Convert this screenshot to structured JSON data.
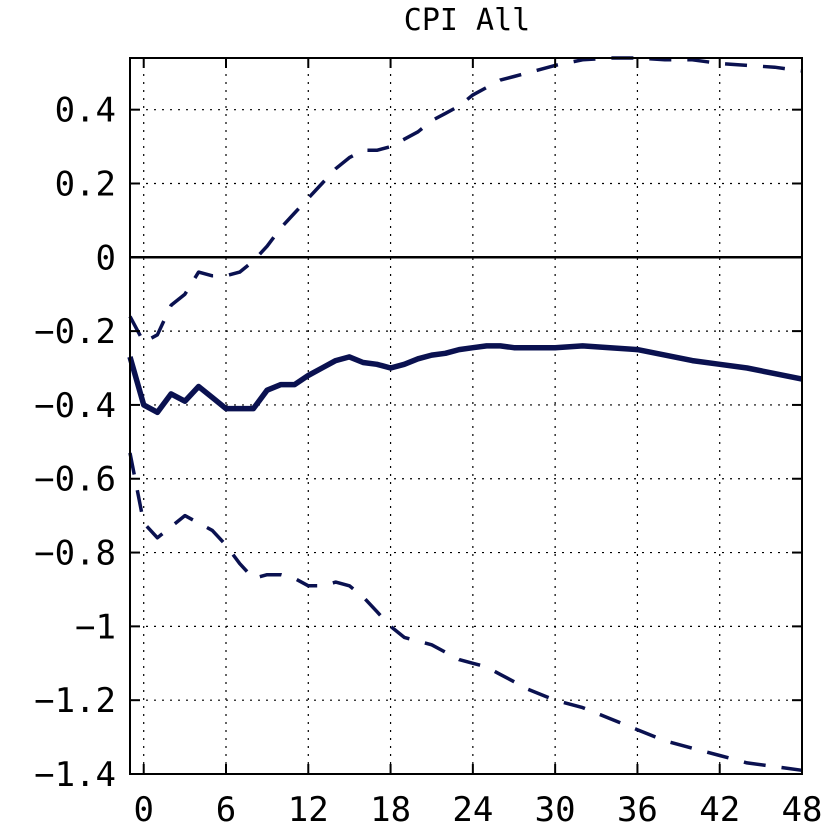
{
  "chart_data": {
    "type": "line",
    "title": "CPI All",
    "xlabel": "",
    "ylabel": "",
    "xlim": [
      -1,
      48
    ],
    "ylim": [
      -1.4,
      0.54
    ],
    "xticks": [
      0,
      6,
      12,
      18,
      24,
      30,
      36,
      42,
      48
    ],
    "xtick_labels": [
      "0",
      "6",
      "12",
      "18",
      "24",
      "30",
      "36",
      "42",
      "48"
    ],
    "yticks": [
      0.4,
      0.2,
      0,
      -0.2,
      -0.4,
      -0.6,
      -0.8,
      -1,
      -1.2,
      -1.4
    ],
    "ytick_labels": [
      "0.4",
      "0.2",
      "0",
      "−0.2",
      "−0.4",
      "−0.6",
      "−0.8",
      "−1",
      "−1.2",
      "−1.4"
    ],
    "grid": true,
    "zero_line": true,
    "line_color": "#0a1150",
    "series": [
      {
        "style": "solid",
        "x": [
          -1,
          0,
          1,
          2,
          3,
          4,
          5,
          6,
          7,
          8,
          9,
          10,
          11,
          12,
          13,
          14,
          15,
          16,
          17,
          18,
          19,
          20,
          21,
          22,
          23,
          24,
          25,
          26,
          27,
          28,
          29,
          30,
          32,
          34,
          36,
          38,
          40,
          42,
          44,
          46,
          48
        ],
        "values": [
          -0.27,
          -0.4,
          -0.42,
          -0.37,
          -0.39,
          -0.35,
          -0.38,
          -0.41,
          -0.41,
          -0.41,
          -0.36,
          -0.345,
          -0.345,
          -0.32,
          -0.3,
          -0.28,
          -0.27,
          -0.285,
          -0.29,
          -0.3,
          -0.29,
          -0.275,
          -0.265,
          -0.26,
          -0.25,
          -0.245,
          -0.24,
          -0.24,
          -0.245,
          -0.245,
          -0.245,
          -0.245,
          -0.24,
          -0.245,
          -0.25,
          -0.265,
          -0.28,
          -0.29,
          -0.3,
          -0.315,
          -0.33
        ]
      },
      {
        "style": "dashed",
        "x": [
          -1,
          0,
          1,
          2,
          3,
          4,
          5,
          6,
          7,
          8,
          9,
          10,
          11,
          12,
          13,
          14,
          15,
          16,
          17,
          18,
          19,
          20,
          21,
          22,
          23,
          24,
          25,
          26,
          27,
          28,
          30,
          32,
          34,
          36,
          38,
          40,
          42,
          44,
          46,
          48
        ],
        "values": [
          -0.16,
          -0.23,
          -0.21,
          -0.13,
          -0.1,
          -0.04,
          -0.05,
          -0.05,
          -0.04,
          -0.01,
          0.03,
          0.08,
          0.12,
          0.16,
          0.2,
          0.24,
          0.27,
          0.29,
          0.29,
          0.3,
          0.32,
          0.34,
          0.37,
          0.39,
          0.41,
          0.44,
          0.46,
          0.48,
          0.49,
          0.5,
          0.52,
          0.535,
          0.54,
          0.54,
          0.535,
          0.535,
          0.525,
          0.52,
          0.515,
          0.505
        ]
      },
      {
        "style": "dashed",
        "x": [
          -1,
          0,
          1,
          2,
          3,
          4,
          5,
          6,
          7,
          8,
          9,
          10,
          11,
          12,
          13,
          14,
          15,
          16,
          17,
          18,
          19,
          20,
          21,
          22,
          23,
          24,
          25,
          26,
          27,
          28,
          30,
          32,
          34,
          36,
          38,
          40,
          42,
          44,
          46,
          48
        ],
        "values": [
          -0.53,
          -0.72,
          -0.76,
          -0.73,
          -0.7,
          -0.72,
          -0.74,
          -0.78,
          -0.83,
          -0.87,
          -0.86,
          -0.86,
          -0.87,
          -0.89,
          -0.89,
          -0.88,
          -0.89,
          -0.92,
          -0.96,
          -1.0,
          -1.03,
          -1.04,
          -1.05,
          -1.07,
          -1.09,
          -1.1,
          -1.11,
          -1.13,
          -1.15,
          -1.17,
          -1.2,
          -1.22,
          -1.25,
          -1.28,
          -1.31,
          -1.33,
          -1.35,
          -1.37,
          -1.38,
          -1.39
        ]
      }
    ]
  }
}
